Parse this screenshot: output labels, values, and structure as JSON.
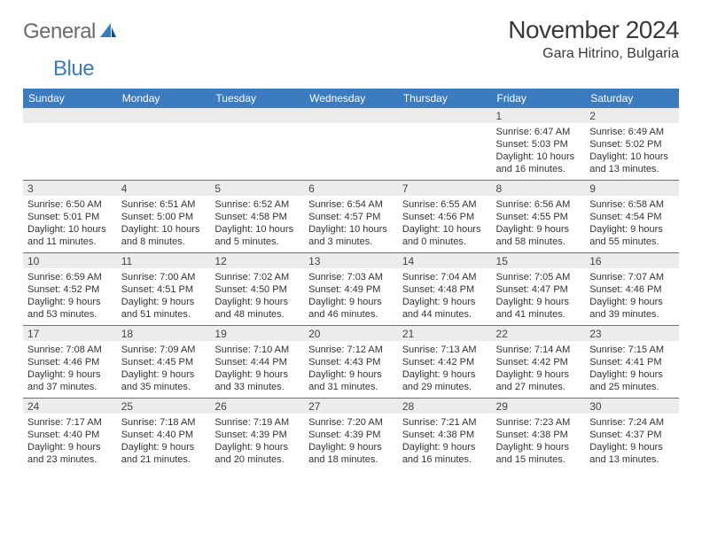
{
  "logo": {
    "general": "General",
    "blue": "Blue"
  },
  "title": "November 2024",
  "location": "Gara Hitrino, Bulgaria",
  "colors": {
    "header_bg": "#3b7bbf",
    "header_fg": "#ffffff",
    "daynum_bg": "#ececec",
    "rule": "#3b7bbf",
    "logo_gray": "#6b6b6b",
    "logo_blue": "#3b7bbf"
  },
  "day_headers": [
    "Sunday",
    "Monday",
    "Tuesday",
    "Wednesday",
    "Thursday",
    "Friday",
    "Saturday"
  ],
  "weeks": [
    [
      {
        "n": "",
        "lines": [
          "",
          "",
          "",
          ""
        ]
      },
      {
        "n": "",
        "lines": [
          "",
          "",
          "",
          ""
        ]
      },
      {
        "n": "",
        "lines": [
          "",
          "",
          "",
          ""
        ]
      },
      {
        "n": "",
        "lines": [
          "",
          "",
          "",
          ""
        ]
      },
      {
        "n": "",
        "lines": [
          "",
          "",
          "",
          ""
        ]
      },
      {
        "n": "1",
        "lines": [
          "Sunrise: 6:47 AM",
          "Sunset: 5:03 PM",
          "Daylight: 10 hours",
          "and 16 minutes."
        ]
      },
      {
        "n": "2",
        "lines": [
          "Sunrise: 6:49 AM",
          "Sunset: 5:02 PM",
          "Daylight: 10 hours",
          "and 13 minutes."
        ]
      }
    ],
    [
      {
        "n": "3",
        "lines": [
          "Sunrise: 6:50 AM",
          "Sunset: 5:01 PM",
          "Daylight: 10 hours",
          "and 11 minutes."
        ]
      },
      {
        "n": "4",
        "lines": [
          "Sunrise: 6:51 AM",
          "Sunset: 5:00 PM",
          "Daylight: 10 hours",
          "and 8 minutes."
        ]
      },
      {
        "n": "5",
        "lines": [
          "Sunrise: 6:52 AM",
          "Sunset: 4:58 PM",
          "Daylight: 10 hours",
          "and 5 minutes."
        ]
      },
      {
        "n": "6",
        "lines": [
          "Sunrise: 6:54 AM",
          "Sunset: 4:57 PM",
          "Daylight: 10 hours",
          "and 3 minutes."
        ]
      },
      {
        "n": "7",
        "lines": [
          "Sunrise: 6:55 AM",
          "Sunset: 4:56 PM",
          "Daylight: 10 hours",
          "and 0 minutes."
        ]
      },
      {
        "n": "8",
        "lines": [
          "Sunrise: 6:56 AM",
          "Sunset: 4:55 PM",
          "Daylight: 9 hours",
          "and 58 minutes."
        ]
      },
      {
        "n": "9",
        "lines": [
          "Sunrise: 6:58 AM",
          "Sunset: 4:54 PM",
          "Daylight: 9 hours",
          "and 55 minutes."
        ]
      }
    ],
    [
      {
        "n": "10",
        "lines": [
          "Sunrise: 6:59 AM",
          "Sunset: 4:52 PM",
          "Daylight: 9 hours",
          "and 53 minutes."
        ]
      },
      {
        "n": "11",
        "lines": [
          "Sunrise: 7:00 AM",
          "Sunset: 4:51 PM",
          "Daylight: 9 hours",
          "and 51 minutes."
        ]
      },
      {
        "n": "12",
        "lines": [
          "Sunrise: 7:02 AM",
          "Sunset: 4:50 PM",
          "Daylight: 9 hours",
          "and 48 minutes."
        ]
      },
      {
        "n": "13",
        "lines": [
          "Sunrise: 7:03 AM",
          "Sunset: 4:49 PM",
          "Daylight: 9 hours",
          "and 46 minutes."
        ]
      },
      {
        "n": "14",
        "lines": [
          "Sunrise: 7:04 AM",
          "Sunset: 4:48 PM",
          "Daylight: 9 hours",
          "and 44 minutes."
        ]
      },
      {
        "n": "15",
        "lines": [
          "Sunrise: 7:05 AM",
          "Sunset: 4:47 PM",
          "Daylight: 9 hours",
          "and 41 minutes."
        ]
      },
      {
        "n": "16",
        "lines": [
          "Sunrise: 7:07 AM",
          "Sunset: 4:46 PM",
          "Daylight: 9 hours",
          "and 39 minutes."
        ]
      }
    ],
    [
      {
        "n": "17",
        "lines": [
          "Sunrise: 7:08 AM",
          "Sunset: 4:46 PM",
          "Daylight: 9 hours",
          "and 37 minutes."
        ]
      },
      {
        "n": "18",
        "lines": [
          "Sunrise: 7:09 AM",
          "Sunset: 4:45 PM",
          "Daylight: 9 hours",
          "and 35 minutes."
        ]
      },
      {
        "n": "19",
        "lines": [
          "Sunrise: 7:10 AM",
          "Sunset: 4:44 PM",
          "Daylight: 9 hours",
          "and 33 minutes."
        ]
      },
      {
        "n": "20",
        "lines": [
          "Sunrise: 7:12 AM",
          "Sunset: 4:43 PM",
          "Daylight: 9 hours",
          "and 31 minutes."
        ]
      },
      {
        "n": "21",
        "lines": [
          "Sunrise: 7:13 AM",
          "Sunset: 4:42 PM",
          "Daylight: 9 hours",
          "and 29 minutes."
        ]
      },
      {
        "n": "22",
        "lines": [
          "Sunrise: 7:14 AM",
          "Sunset: 4:42 PM",
          "Daylight: 9 hours",
          "and 27 minutes."
        ]
      },
      {
        "n": "23",
        "lines": [
          "Sunrise: 7:15 AM",
          "Sunset: 4:41 PM",
          "Daylight: 9 hours",
          "and 25 minutes."
        ]
      }
    ],
    [
      {
        "n": "24",
        "lines": [
          "Sunrise: 7:17 AM",
          "Sunset: 4:40 PM",
          "Daylight: 9 hours",
          "and 23 minutes."
        ]
      },
      {
        "n": "25",
        "lines": [
          "Sunrise: 7:18 AM",
          "Sunset: 4:40 PM",
          "Daylight: 9 hours",
          "and 21 minutes."
        ]
      },
      {
        "n": "26",
        "lines": [
          "Sunrise: 7:19 AM",
          "Sunset: 4:39 PM",
          "Daylight: 9 hours",
          "and 20 minutes."
        ]
      },
      {
        "n": "27",
        "lines": [
          "Sunrise: 7:20 AM",
          "Sunset: 4:39 PM",
          "Daylight: 9 hours",
          "and 18 minutes."
        ]
      },
      {
        "n": "28",
        "lines": [
          "Sunrise: 7:21 AM",
          "Sunset: 4:38 PM",
          "Daylight: 9 hours",
          "and 16 minutes."
        ]
      },
      {
        "n": "29",
        "lines": [
          "Sunrise: 7:23 AM",
          "Sunset: 4:38 PM",
          "Daylight: 9 hours",
          "and 15 minutes."
        ]
      },
      {
        "n": "30",
        "lines": [
          "Sunrise: 7:24 AM",
          "Sunset: 4:37 PM",
          "Daylight: 9 hours",
          "and 13 minutes."
        ]
      }
    ]
  ]
}
